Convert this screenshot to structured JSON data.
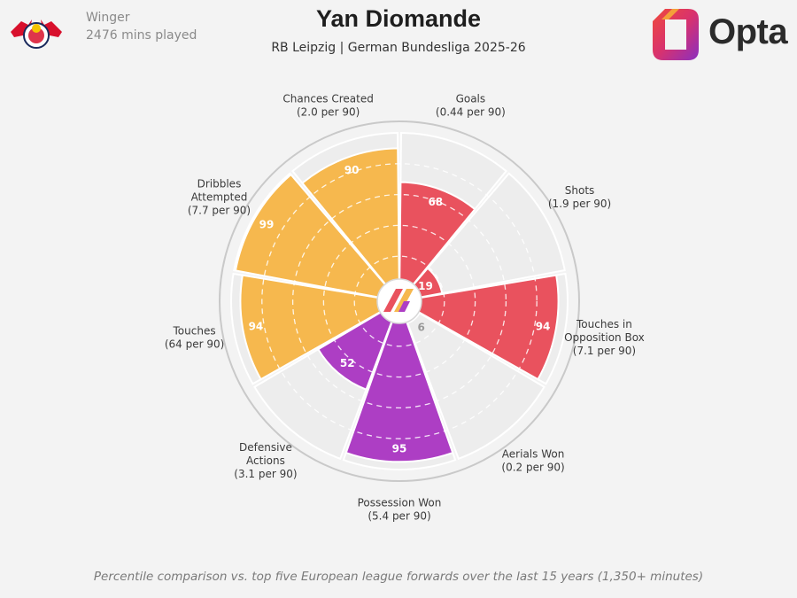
{
  "header": {
    "role": "Winger",
    "minutes": "2476 mins played",
    "player_name": "Yan Diomande",
    "subtitle": "RB Leipzig | German Bundesliga 2025-26",
    "club_logo_icon": "rb-leipzig-crest-icon",
    "brand_logo_icon": "opta-logo-icon",
    "brand_word": "Opta"
  },
  "colors": {
    "attacking": "#e9525e",
    "possession": "#f6b84e",
    "defending": "#ad3ec4",
    "empty_value": "#9a9a9a",
    "background": "#f3f3f3"
  },
  "chart_data": {
    "type": "polar-bar",
    "rmax": 100,
    "categories": [
      {
        "label_lines": [
          "Goals",
          "(0.44 per 90)"
        ],
        "value": 68,
        "group": "attacking"
      },
      {
        "label_lines": [
          "Shots",
          "(1.9 per 90)"
        ],
        "value": 19,
        "group": "attacking"
      },
      {
        "label_lines": [
          "Touches in",
          "Opposition Box",
          "(7.1 per 90)"
        ],
        "value": 94,
        "group": "attacking"
      },
      {
        "label_lines": [
          "Aerials Won",
          "(0.2 per 90)"
        ],
        "value": 6,
        "group": "defending"
      },
      {
        "label_lines": [
          "Possession Won",
          "(5.4 per 90)"
        ],
        "value": 95,
        "group": "defending"
      },
      {
        "label_lines": [
          "Defensive",
          "Actions",
          "(3.1 per 90)"
        ],
        "value": 52,
        "group": "defending"
      },
      {
        "label_lines": [
          "Touches",
          "(64 per 90)"
        ],
        "value": 94,
        "group": "possession"
      },
      {
        "label_lines": [
          "Dribbles",
          "Attempted",
          "(7.7 per 90)"
        ],
        "value": 99,
        "group": "possession"
      },
      {
        "label_lines": [
          "Chances Created",
          "(2.0 per 90)"
        ],
        "value": 90,
        "group": "possession"
      }
    ]
  },
  "footnote": "Percentile comparison vs. top five European league forwards over the last 15 years (1,350+ minutes)"
}
